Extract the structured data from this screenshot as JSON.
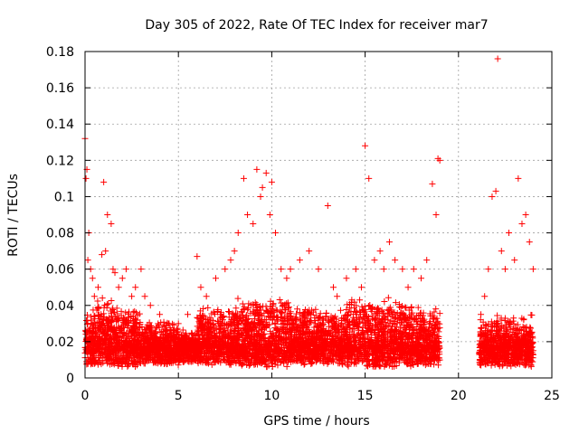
{
  "chart_data": {
    "type": "scatter",
    "title": "Day 305 of 2022, Rate Of TEC Index for receiver mar7",
    "xlabel": "GPS time / hours",
    "ylabel": "ROTI / TECUs",
    "xlim": [
      0,
      25
    ],
    "ylim": [
      0,
      0.18
    ],
    "x_ticks": [
      "0",
      "5",
      "10",
      "15",
      "20",
      "25"
    ],
    "y_ticks": [
      "0",
      "0.02",
      "0.04",
      "0.06",
      "0.08",
      "0.1",
      "0.12",
      "0.14",
      "0.16",
      "0.18"
    ],
    "grid": true,
    "legend": "none",
    "marker": "+",
    "color": "#ff0000",
    "series": [
      {
        "x": [
          0.0,
          0.05,
          0.1,
          0.15,
          0.2,
          0.3,
          0.4,
          0.5,
          0.7,
          0.9,
          1.0,
          1.1,
          1.2,
          1.4,
          1.5,
          1.6,
          1.8,
          2.0,
          2.2,
          2.5,
          2.7,
          3.0,
          3.2,
          3.5,
          4.0,
          4.5,
          5.0,
          5.5,
          6.0,
          6.2,
          6.5,
          7.0,
          7.5,
          7.8,
          8.0,
          8.2,
          8.5,
          8.7,
          9.0,
          9.2,
          9.4,
          9.5,
          9.7,
          9.9,
          10.0,
          10.2,
          10.5,
          10.8,
          11.0,
          11.5,
          12.0,
          12.5,
          13.0,
          13.3,
          13.5,
          14.0,
          14.5,
          14.8,
          15.0,
          15.2,
          15.5,
          15.8,
          16.0,
          16.3,
          16.6,
          17.0,
          17.3,
          17.6,
          18.0,
          18.3,
          18.6,
          18.8,
          18.9,
          19.0,
          21.2,
          21.4,
          21.6,
          21.8,
          22.0,
          22.1,
          22.3,
          22.5,
          22.7,
          23.0,
          23.2,
          23.4,
          23.6,
          23.8,
          24.0
        ],
        "y": [
          0.132,
          0.11,
          0.115,
          0.065,
          0.08,
          0.06,
          0.055,
          0.045,
          0.05,
          0.068,
          0.108,
          0.07,
          0.09,
          0.085,
          0.06,
          0.058,
          0.05,
          0.055,
          0.06,
          0.045,
          0.05,
          0.06,
          0.045,
          0.04,
          0.035,
          0.03,
          0.03,
          0.035,
          0.067,
          0.05,
          0.045,
          0.055,
          0.06,
          0.065,
          0.07,
          0.08,
          0.11,
          0.09,
          0.085,
          0.115,
          0.1,
          0.105,
          0.113,
          0.09,
          0.108,
          0.08,
          0.06,
          0.055,
          0.06,
          0.065,
          0.07,
          0.06,
          0.095,
          0.05,
          0.045,
          0.055,
          0.06,
          0.05,
          0.128,
          0.11,
          0.065,
          0.07,
          0.06,
          0.075,
          0.065,
          0.06,
          0.05,
          0.06,
          0.055,
          0.065,
          0.107,
          0.09,
          0.121,
          0.12,
          0.035,
          0.045,
          0.06,
          0.1,
          0.103,
          0.176,
          0.07,
          0.06,
          0.08,
          0.065,
          0.11,
          0.085,
          0.09,
          0.075,
          0.06
        ]
      }
    ],
    "density_bands": [
      {
        "from": 0.0,
        "to": 0.4,
        "low": 0.006,
        "high": 0.04
      },
      {
        "from": 0.4,
        "to": 1.5,
        "low": 0.007,
        "high": 0.045
      },
      {
        "from": 1.5,
        "to": 3.0,
        "low": 0.006,
        "high": 0.04
      },
      {
        "from": 3.0,
        "to": 5.0,
        "low": 0.007,
        "high": 0.032
      },
      {
        "from": 5.0,
        "to": 6.0,
        "low": 0.008,
        "high": 0.028
      },
      {
        "from": 6.0,
        "to": 8.0,
        "low": 0.007,
        "high": 0.04
      },
      {
        "from": 8.0,
        "to": 11.0,
        "low": 0.006,
        "high": 0.045
      },
      {
        "from": 11.0,
        "to": 14.0,
        "low": 0.007,
        "high": 0.04
      },
      {
        "from": 14.0,
        "to": 17.5,
        "low": 0.006,
        "high": 0.045
      },
      {
        "from": 17.5,
        "to": 19.0,
        "low": 0.006,
        "high": 0.04
      },
      {
        "from": 21.1,
        "to": 24.0,
        "low": 0.006,
        "high": 0.035
      }
    ]
  }
}
